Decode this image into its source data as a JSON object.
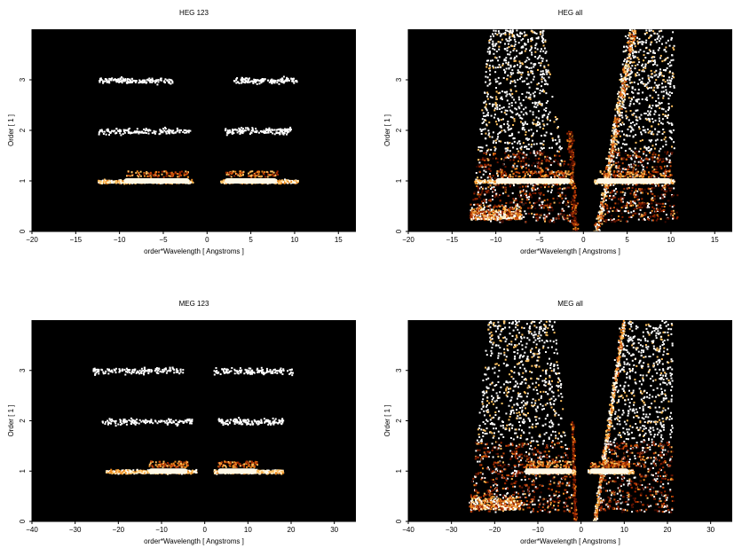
{
  "chart_data": [
    {
      "type": "heatmap",
      "title": "HEG 123",
      "xlabel": "order*Wavelength [ Angstroms ]",
      "ylabel": "Order [ 1 ]",
      "xlim": [
        -20,
        17
      ],
      "ylim": [
        0,
        4
      ],
      "xticks": [
        -20,
        -15,
        -10,
        -5,
        0,
        5,
        10,
        15
      ],
      "yticks": [
        0,
        1,
        2,
        3
      ],
      "background": "#000000",
      "bands": [
        {
          "order": 1,
          "x_ranges": [
            [
              -12.5,
              -1.7
            ],
            [
              1.5,
              10.3
            ]
          ],
          "intensity": "high",
          "core_ranges": [
            [
              -9.5,
              -2.0
            ],
            [
              2.0,
              8.0
            ]
          ]
        },
        {
          "order": 2,
          "x_ranges": [
            [
              -12.5,
              -2.0
            ],
            [
              2.0,
              9.5
            ]
          ],
          "intensity": "low"
        },
        {
          "order": 3,
          "x_ranges": [
            [
              -12.5,
              -4.0
            ],
            [
              3.0,
              10.3
            ]
          ],
          "intensity": "low"
        }
      ],
      "wings": false
    },
    {
      "type": "heatmap",
      "title": "HEG all",
      "xlabel": "order*Wavelength [ Angstroms ]",
      "ylabel": "Order [ 1 ]",
      "xlim": [
        -20,
        17
      ],
      "ylim": [
        0,
        4
      ],
      "xticks": [
        -20,
        -15,
        -10,
        -5,
        0,
        5,
        10,
        15
      ],
      "yticks": [
        0,
        1,
        2,
        3
      ],
      "background": "#000000",
      "bands": [
        {
          "order": 1,
          "x_ranges": [
            [
              -12.5,
              -1.2
            ],
            [
              1.2,
              10.3
            ]
          ],
          "intensity": "high",
          "core_ranges": [
            [
              -10.0,
              -1.5
            ],
            [
              1.5,
              10.0
            ]
          ]
        }
      ],
      "wings": true,
      "wing_extent": [
        -13.0,
        10.3
      ],
      "center_wedge_x": [
        -1.0,
        1.5
      ]
    },
    {
      "type": "heatmap",
      "title": "MEG 123",
      "xlabel": "order*Wavelength [ Angstroms ]",
      "ylabel": "Order [ 1 ]",
      "xlim": [
        -40,
        35
      ],
      "ylim": [
        0,
        4
      ],
      "xticks": [
        -40,
        -30,
        -20,
        -10,
        0,
        10,
        20,
        30
      ],
      "yticks": [
        0,
        1,
        2,
        3
      ],
      "background": "#000000",
      "bands": [
        {
          "order": 1,
          "x_ranges": [
            [
              -23.0,
              -2.0
            ],
            [
              2.0,
              18.0
            ]
          ],
          "intensity": "high",
          "core_ranges": [
            [
              -13.0,
              -4.0
            ],
            [
              3.0,
              12.0
            ]
          ]
        },
        {
          "order": 2,
          "x_ranges": [
            [
              -24.0,
              -3.0
            ],
            [
              3.0,
              18.0
            ]
          ],
          "intensity": "low"
        },
        {
          "order": 3,
          "x_ranges": [
            [
              -26.0,
              -5.0
            ],
            [
              2.0,
              20.5
            ]
          ],
          "intensity": "low"
        }
      ],
      "wings": false
    },
    {
      "type": "heatmap",
      "title": "MEG all",
      "xlabel": "order*Wavelength [ Angstroms ]",
      "ylabel": "Order [ 1 ]",
      "xlim": [
        -40,
        35
      ],
      "ylim": [
        0,
        4
      ],
      "xticks": [
        -40,
        -30,
        -20,
        -10,
        0,
        10,
        20,
        30
      ],
      "yticks": [
        0,
        1,
        2,
        3
      ],
      "background": "#000000",
      "bands": [
        {
          "order": 1,
          "x_ranges": [
            [
              -13.0,
              -1.5
            ],
            [
              1.5,
              12.0
            ]
          ],
          "intensity": "high",
          "core_ranges": [
            [
              -13.0,
              -2.0
            ],
            [
              2.0,
              11.0
            ]
          ]
        }
      ],
      "wings": true,
      "wing_extent": [
        -26.0,
        21.0
      ],
      "center_wedge_x": [
        -1.5,
        3.0
      ]
    }
  ]
}
